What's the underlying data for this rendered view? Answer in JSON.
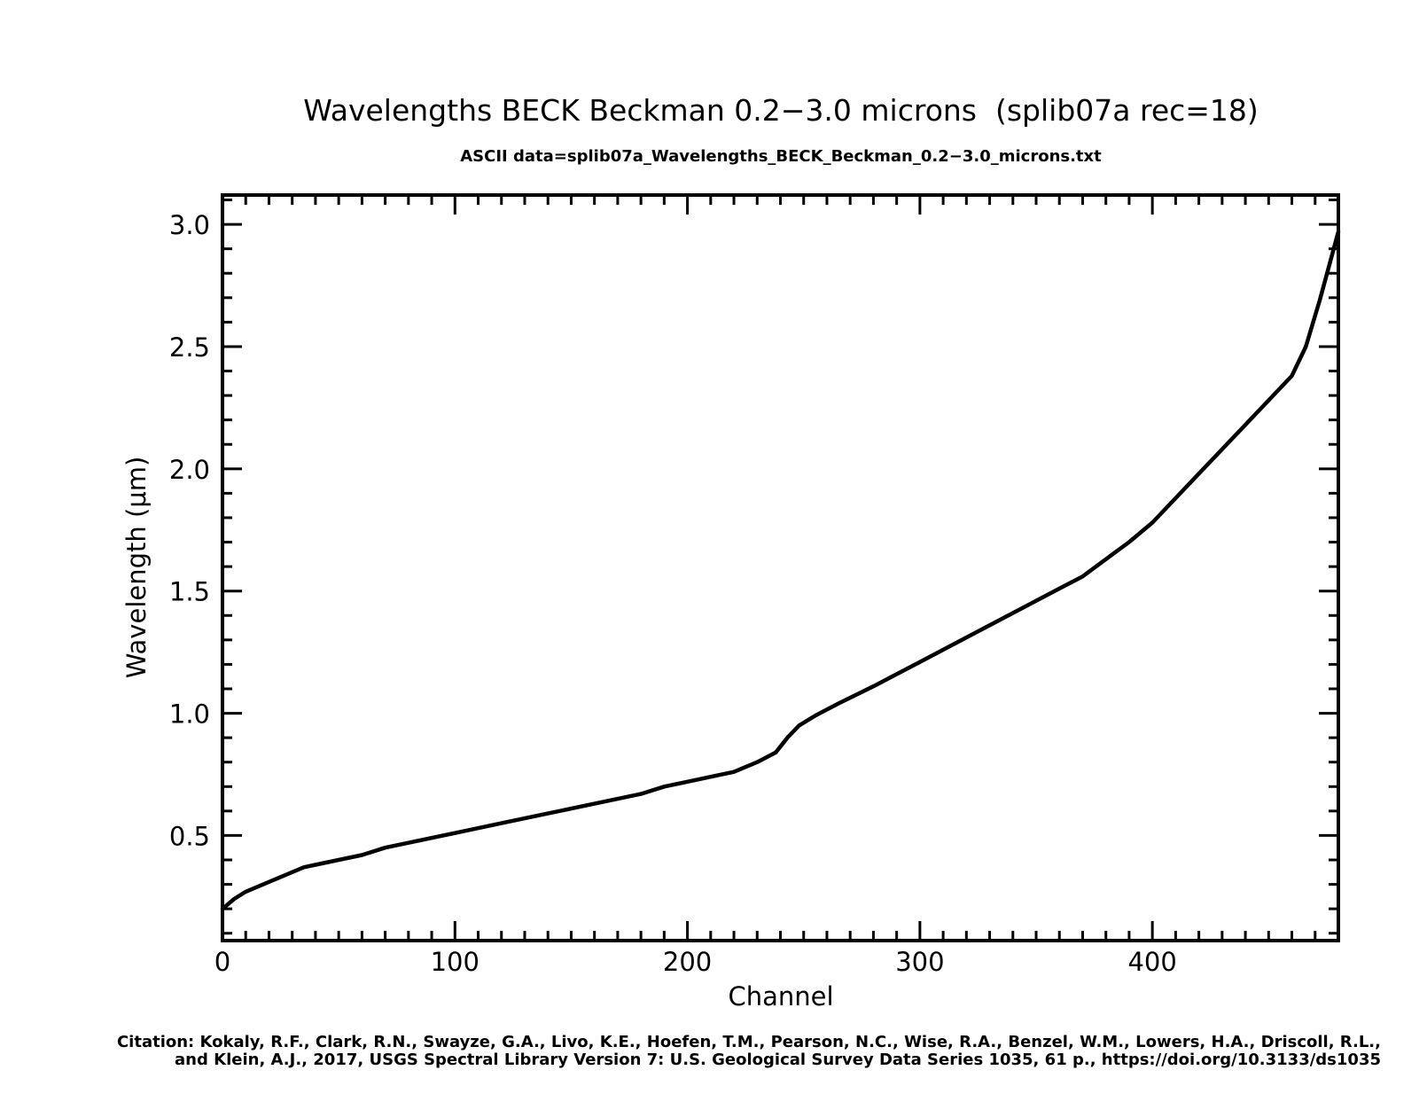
{
  "chart_data": {
    "type": "line",
    "title": "Wavelengths BECK Beckman 0.2−3.0 microns  (splib07a rec=18)",
    "subtitle": "ASCII data=splib07a_Wavelengths_BECK_Beckman_0.2−3.0_microns.txt",
    "xlabel": "Channel",
    "ylabel": "Wavelength (μm)",
    "xlim": [
      0,
      480
    ],
    "ylim": [
      0.07,
      3.12
    ],
    "x_ticks": [
      0,
      100,
      200,
      300,
      400
    ],
    "x_tick_labels": [
      "0",
      "100",
      "200",
      "300",
      "400"
    ],
    "y_ticks": [
      0.5,
      1.0,
      1.5,
      2.0,
      2.5,
      3.0
    ],
    "y_tick_labels": [
      "0.5",
      "1.0",
      "1.5",
      "2.0",
      "2.5",
      "3.0"
    ],
    "grid": false,
    "series": [
      {
        "x": [
          0,
          5,
          10,
          20,
          30,
          35,
          40,
          50,
          60,
          70,
          80,
          100,
          120,
          140,
          160,
          180,
          190,
          200,
          220,
          230,
          238,
          243,
          248,
          255,
          265,
          280,
          300,
          320,
          340,
          360,
          370,
          380,
          390,
          400,
          420,
          440,
          460,
          466,
          472,
          480
        ],
        "y": [
          0.2,
          0.24,
          0.27,
          0.31,
          0.35,
          0.37,
          0.38,
          0.4,
          0.42,
          0.45,
          0.47,
          0.51,
          0.55,
          0.59,
          0.63,
          0.67,
          0.7,
          0.72,
          0.76,
          0.8,
          0.84,
          0.9,
          0.95,
          0.99,
          1.04,
          1.11,
          1.21,
          1.31,
          1.41,
          1.51,
          1.56,
          1.63,
          1.7,
          1.78,
          1.98,
          2.18,
          2.38,
          2.5,
          2.69,
          2.97
        ]
      }
    ],
    "citation_line1": "Citation: Kokaly, R.F., Clark, R.N., Swayze, G.A., Livo, K.E., Hoefen, T.M., Pearson, N.C., Wise, R.A., Benzel, W.M., Lowers, H.A., Driscoll, R.L.,",
    "citation_line2": "and Klein, A.J., 2017, USGS Spectral Library Version 7: U.S. Geological Survey Data Series 1035, 61 p., https://doi.org/10.3133/ds1035",
    "line_color": "#000000",
    "background": "#ffffff"
  }
}
